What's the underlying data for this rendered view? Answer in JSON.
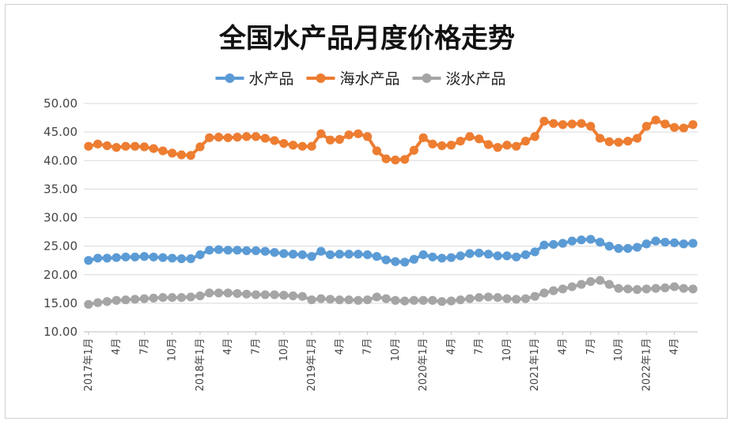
{
  "chart_data": {
    "type": "line",
    "title": "全国水产品月度价格走势",
    "ylim": [
      10,
      50
    ],
    "yticks": [
      "10.00",
      "15.00",
      "20.00",
      "25.00",
      "30.00",
      "35.00",
      "40.00",
      "45.00",
      "50.00"
    ],
    "grid": true,
    "legend_position": "top",
    "x_labels": [
      "2017年1月",
      "",
      "",
      "4月",
      "",
      "",
      "7月",
      "",
      "",
      "10月",
      "",
      "",
      "2018年1月",
      "",
      "",
      "4月",
      "",
      "",
      "7月",
      "",
      "",
      "10月",
      "",
      "",
      "2019年1月",
      "",
      "",
      "4月",
      "",
      "",
      "7月",
      "",
      "",
      "10月",
      "",
      "",
      "2020年1月",
      "",
      "",
      "4月",
      "",
      "",
      "7月",
      "",
      "",
      "10月",
      "",
      "",
      "2021年1月",
      "",
      "",
      "4月",
      "",
      "",
      "7月",
      "",
      "",
      "10月",
      "",
      "",
      "2022年1月",
      "",
      "",
      "4月",
      "",
      ""
    ],
    "series": [
      {
        "name": "水产品",
        "color": "#5b9bd5",
        "values": [
          22.5,
          22.9,
          22.9,
          23.0,
          23.1,
          23.1,
          23.2,
          23.1,
          23.0,
          22.9,
          22.8,
          22.8,
          23.5,
          24.3,
          24.4,
          24.3,
          24.3,
          24.2,
          24.2,
          24.1,
          23.9,
          23.7,
          23.6,
          23.5,
          23.2,
          24.1,
          23.5,
          23.6,
          23.6,
          23.6,
          23.5,
          23.2,
          22.6,
          22.3,
          22.2,
          22.7,
          23.5,
          23.1,
          22.9,
          23.0,
          23.3,
          23.7,
          23.8,
          23.6,
          23.3,
          23.3,
          23.1,
          23.5,
          24.0,
          25.2,
          25.3,
          25.5,
          25.9,
          26.1,
          26.2,
          25.7,
          25.0,
          24.6,
          24.6,
          24.8,
          25.4,
          25.9,
          25.7,
          25.6,
          25.4,
          25.5
        ]
      },
      {
        "name": "海水产品",
        "color": "#ed7d31",
        "values": [
          42.5,
          42.9,
          42.6,
          42.3,
          42.5,
          42.5,
          42.4,
          42.1,
          41.7,
          41.3,
          41.0,
          40.9,
          42.4,
          44.0,
          44.1,
          44.0,
          44.1,
          44.2,
          44.2,
          43.9,
          43.5,
          43.0,
          42.7,
          42.5,
          42.5,
          44.7,
          43.6,
          43.7,
          44.5,
          44.7,
          44.2,
          41.7,
          40.3,
          40.1,
          40.2,
          41.8,
          44.0,
          42.9,
          42.6,
          42.7,
          43.4,
          44.2,
          43.8,
          42.8,
          42.3,
          42.7,
          42.5,
          43.4,
          44.2,
          46.9,
          46.5,
          46.3,
          46.4,
          46.5,
          46.0,
          43.9,
          43.3,
          43.2,
          43.4,
          43.9,
          46.0,
          47.1,
          46.4,
          45.8,
          45.7,
          46.3
        ]
      },
      {
        "name": "淡水产品",
        "color": "#a5a5a5",
        "values": [
          14.8,
          15.1,
          15.3,
          15.5,
          15.6,
          15.7,
          15.8,
          15.9,
          16.0,
          16.0,
          16.0,
          16.1,
          16.3,
          16.8,
          16.8,
          16.8,
          16.7,
          16.6,
          16.5,
          16.5,
          16.5,
          16.4,
          16.3,
          16.2,
          15.6,
          15.8,
          15.7,
          15.6,
          15.6,
          15.5,
          15.6,
          16.1,
          15.8,
          15.5,
          15.4,
          15.5,
          15.5,
          15.5,
          15.3,
          15.4,
          15.6,
          15.8,
          16.0,
          16.1,
          16.0,
          15.8,
          15.7,
          15.8,
          16.2,
          16.8,
          17.2,
          17.5,
          17.9,
          18.3,
          18.8,
          19.0,
          18.3,
          17.6,
          17.5,
          17.4,
          17.5,
          17.6,
          17.7,
          17.9,
          17.6,
          17.5
        ]
      }
    ]
  }
}
